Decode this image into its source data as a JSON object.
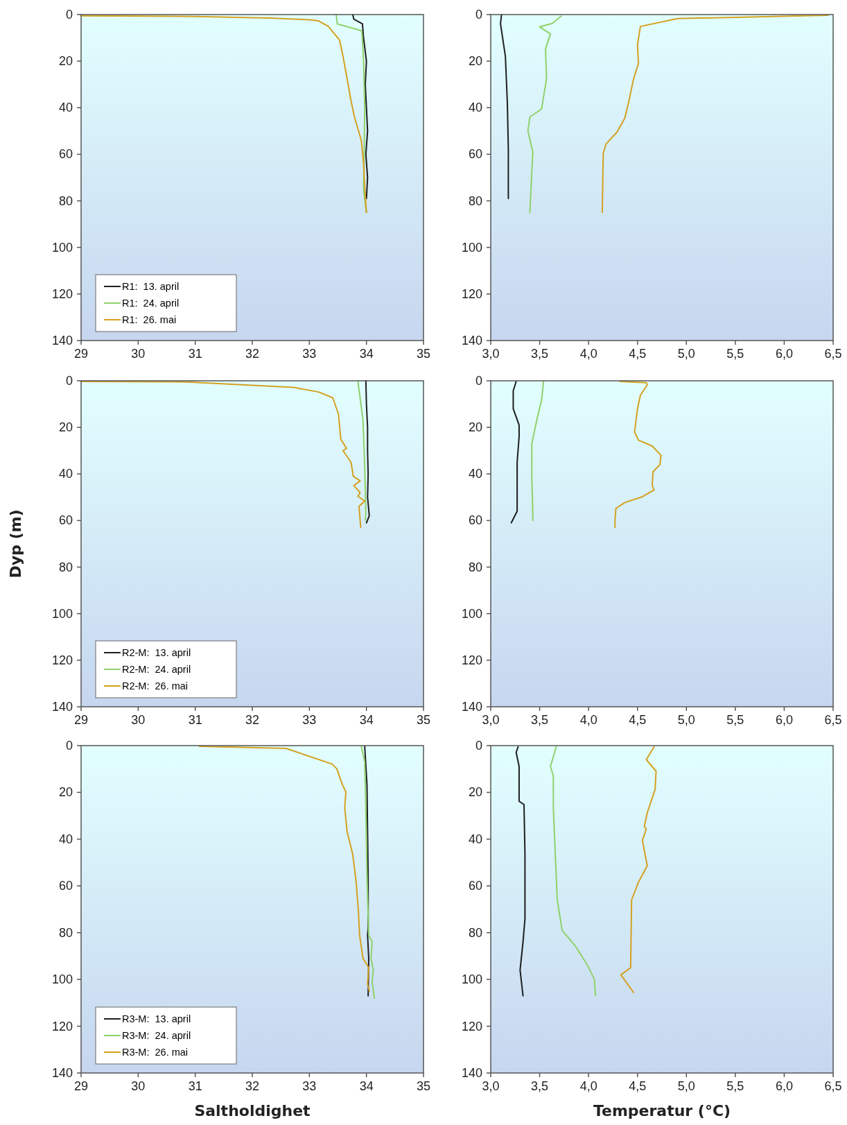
{
  "chart_data": [
    {
      "type": "line",
      "xlim": [
        29,
        35
      ],
      "xticks": [
        29,
        30,
        31,
        32,
        33,
        34,
        35
      ],
      "ylim": [
        140,
        0
      ],
      "yticks": [
        0,
        20,
        40,
        60,
        80,
        100,
        120,
        140
      ],
      "legend": "bottom left",
      "series": [
        {
          "name": "R1:  13. april",
          "color": "#1e1e1e",
          "x": [
            33.76,
            33.78,
            33.93,
            33.95,
            34.0,
            33.98,
            34.0,
            34.02,
            33.99,
            34.02,
            34.0
          ],
          "values": [
            0,
            2,
            4,
            10,
            20,
            30,
            40,
            50,
            60,
            70,
            79
          ]
        },
        {
          "name": "R1:  24. april",
          "color": "#8fd16a",
          "x": [
            33.47,
            33.49,
            33.92,
            33.95,
            33.97,
            33.96,
            33.95,
            34.0
          ],
          "values": [
            0,
            4,
            7,
            20,
            40,
            60,
            75,
            85
          ]
        },
        {
          "name": "R1:  26. mai",
          "color": "#d4a020",
          "x": [
            29.0,
            31.0,
            32.3,
            33.0,
            33.16,
            33.33,
            33.43,
            33.53,
            33.59,
            33.65,
            33.73,
            33.79,
            33.91,
            33.95,
            33.97,
            34.0
          ],
          "values": [
            0.5,
            0.8,
            1.5,
            2.2,
            2.7,
            5,
            8,
            11,
            18,
            26,
            37,
            44,
            54,
            64,
            74,
            85
          ]
        }
      ]
    },
    {
      "type": "line",
      "xlim": [
        3,
        6.5
      ],
      "xticks": [
        {
          "value": 3,
          "label": "3,0"
        },
        {
          "value": 3.5,
          "label": "3,5"
        },
        {
          "value": 4,
          "label": "4,0"
        },
        {
          "value": 4.5,
          "label": "4,5"
        },
        {
          "value": 5,
          "label": "5,0"
        },
        {
          "value": 5.5,
          "label": "5,5"
        },
        {
          "value": 6,
          "label": "6,0"
        },
        {
          "value": 6.5,
          "label": "6,5"
        }
      ],
      "ylim": [
        140,
        0
      ],
      "yticks": [
        0,
        20,
        40,
        60,
        80,
        100,
        120,
        140
      ],
      "series": [
        {
          "color": "#1e1e1e",
          "x": [
            3.11,
            3.1,
            3.15,
            3.17,
            3.18,
            3.18
          ],
          "values": [
            0,
            4,
            18,
            38,
            58,
            79
          ]
        },
        {
          "color": "#8fd16a",
          "x": [
            3.72,
            3.63,
            3.5,
            3.61,
            3.56,
            3.57,
            3.52,
            3.4,
            3.38,
            3.43,
            3.4
          ],
          "values": [
            0.7,
            3.8,
            5.3,
            8.3,
            14.7,
            27.6,
            40.5,
            44,
            50,
            59,
            85
          ]
        },
        {
          "color": "#d4a020",
          "x": [
            6.45,
            4.91,
            4.53,
            4.5,
            4.51,
            4.46,
            4.41,
            4.37,
            4.29,
            4.18,
            4.15,
            4.14
          ],
          "values": [
            0.3,
            1.7,
            5.1,
            13,
            21,
            27.6,
            37.6,
            44.5,
            50.5,
            55.5,
            59.5,
            85
          ]
        }
      ]
    },
    {
      "type": "line",
      "xlim": [
        29,
        35
      ],
      "xticks": [
        29,
        30,
        31,
        32,
        33,
        34,
        35
      ],
      "ylim": [
        140,
        0
      ],
      "yticks": [
        0,
        20,
        40,
        60,
        80,
        100,
        120,
        140
      ],
      "ylabel": "Dyp (m)",
      "legend": "bottom left",
      "series": [
        {
          "name": "R2-M:  13. april",
          "color": "#1e1e1e",
          "x": [
            33.99,
            34.0,
            34.02,
            34.02,
            34.03,
            34.02,
            34.05,
            34.0
          ],
          "values": [
            0,
            10,
            20,
            30,
            40,
            50,
            58,
            61
          ]
        },
        {
          "name": "R2-M:  24. april",
          "color": "#8fd16a",
          "x": [
            33.85,
            33.94,
            33.97,
            33.99,
            33.98
          ],
          "values": [
            0,
            17,
            37,
            57,
            60
          ]
        },
        {
          "name": "R2-M:  26. mai",
          "color": "#d4a020",
          "x": [
            29.0,
            30.86,
            32.72,
            33.16,
            33.41,
            33.51,
            33.55,
            33.65,
            33.59,
            33.73,
            33.77,
            33.89,
            33.78,
            33.89,
            33.85,
            33.97,
            33.87,
            33.88,
            33.9
          ],
          "values": [
            0.3,
            0.5,
            2.8,
            4.8,
            7.3,
            14.3,
            25,
            29,
            30,
            35,
            41,
            43,
            45,
            48,
            49.6,
            51.6,
            54,
            57,
            63
          ]
        }
      ]
    },
    {
      "type": "line",
      "xlim": [
        3,
        6.5
      ],
      "xticks": [
        {
          "value": 3,
          "label": "3,0"
        },
        {
          "value": 3.5,
          "label": "3,5"
        },
        {
          "value": 4,
          "label": "4,0"
        },
        {
          "value": 4.5,
          "label": "4,5"
        },
        {
          "value": 5,
          "label": "5,0"
        },
        {
          "value": 5.5,
          "label": "5,5"
        },
        {
          "value": 6,
          "label": "6,0"
        },
        {
          "value": 6.5,
          "label": "6,5"
        }
      ],
      "ylim": [
        140,
        0
      ],
      "yticks": [
        0,
        20,
        40,
        60,
        80,
        100,
        120,
        140
      ],
      "series": [
        {
          "color": "#1e1e1e",
          "x": [
            3.26,
            3.23,
            3.23,
            3.29,
            3.29,
            3.27,
            3.27,
            3.27,
            3.21
          ],
          "values": [
            0.3,
            4.3,
            12,
            19,
            24,
            35,
            54,
            56,
            61
          ]
        },
        {
          "color": "#8fd16a",
          "x": [
            3.54,
            3.52,
            3.47,
            3.42,
            3.42,
            3.43,
            3.43
          ],
          "values": [
            0.3,
            8.2,
            17,
            27,
            42,
            57,
            60
          ]
        },
        {
          "color": "#d4a020",
          "x": [
            4.32,
            4.59,
            4.6,
            4.53,
            4.5,
            4.47,
            4.51,
            4.65,
            4.74,
            4.73,
            4.66,
            4.65,
            4.67,
            4.55,
            4.37,
            4.28,
            4.27,
            4.27
          ],
          "values": [
            0.3,
            0.8,
            1.8,
            6.2,
            12,
            22,
            25.5,
            28,
            32,
            36,
            39,
            44.9,
            46.9,
            49.8,
            52.3,
            54.8,
            59.7,
            63
          ]
        }
      ]
    },
    {
      "type": "line",
      "xlim": [
        29,
        35
      ],
      "xticks": [
        29,
        30,
        31,
        32,
        33,
        34,
        35
      ],
      "ylim": [
        140,
        0
      ],
      "yticks": [
        0,
        20,
        40,
        60,
        80,
        100,
        120,
        140
      ],
      "xlabel": "Saltholdighet",
      "legend": "bottom left",
      "series": [
        {
          "name": "R3-M:  13. april",
          "color": "#1e1e1e",
          "x": [
            33.97,
            34.01,
            34.02,
            34.03,
            34.03,
            34.02,
            34.04,
            34.03
          ],
          "values": [
            0.3,
            16.8,
            36.6,
            56,
            78,
            81,
            91,
            107
          ]
        },
        {
          "name": "R3-M:  24. april",
          "color": "#8fd16a",
          "x": [
            33.91,
            33.97,
            33.99,
            34.01,
            34.04,
            34.1,
            34.08,
            34.12,
            34.1,
            34.14
          ],
          "values": [
            0.3,
            7,
            27,
            56,
            81,
            84,
            91,
            96,
            101,
            108
          ]
        },
        {
          "name": "R3-M:  26. mai",
          "color": "#d4a020",
          "x": [
            31.07,
            32.59,
            33.4,
            33.48,
            33.58,
            33.64,
            33.62,
            33.66,
            33.76,
            33.82,
            33.86,
            33.88,
            33.94,
            34.04,
            34.02,
            34.04,
            34.05
          ],
          "values": [
            0.3,
            1.2,
            7.9,
            9.9,
            16.8,
            19.8,
            26.7,
            36.6,
            46.5,
            58.3,
            71.2,
            81,
            91,
            95,
            102,
            104,
            105
          ]
        }
      ]
    },
    {
      "type": "line",
      "xlim": [
        3,
        6.5
      ],
      "xticks": [
        {
          "value": 3,
          "label": "3,0"
        },
        {
          "value": 3.5,
          "label": "3,5"
        },
        {
          "value": 4,
          "label": "4,0"
        },
        {
          "value": 4.5,
          "label": "4,5"
        },
        {
          "value": 5,
          "label": "5,0"
        },
        {
          "value": 5.5,
          "label": "5,5"
        },
        {
          "value": 6,
          "label": "6,0"
        },
        {
          "value": 6.5,
          "label": "6,5"
        }
      ],
      "ylim": [
        140,
        0
      ],
      "yticks": [
        0,
        20,
        40,
        60,
        80,
        100,
        120,
        140
      ],
      "xlabel": "Temperatur (°C)",
      "series": [
        {
          "color": "#1e1e1e",
          "x": [
            3.28,
            3.26,
            3.29,
            3.29,
            3.34,
            3.35,
            3.35,
            3.33,
            3.3,
            3.33
          ],
          "values": [
            0.5,
            2.9,
            8.9,
            23.8,
            25.2,
            46.5,
            74,
            84,
            96,
            107
          ]
        },
        {
          "color": "#8fd16a",
          "x": [
            3.67,
            3.61,
            3.64,
            3.64,
            3.66,
            3.68,
            3.73,
            3.87,
            3.99,
            4.06,
            4.07
          ],
          "values": [
            0.5,
            8.9,
            12.9,
            26.7,
            46.5,
            66,
            79,
            86,
            94,
            100,
            107
          ]
        },
        {
          "color": "#d4a020",
          "x": [
            4.67,
            4.59,
            4.69,
            4.68,
            4.6,
            4.57,
            4.59,
            4.55,
            4.6,
            4.51,
            4.44,
            4.43,
            4.33,
            4.46
          ],
          "values": [
            0.5,
            6,
            10.9,
            18.8,
            28.7,
            34.6,
            35.6,
            40.5,
            51.4,
            58.4,
            66,
            95,
            98,
            105.6
          ]
        }
      ]
    }
  ]
}
